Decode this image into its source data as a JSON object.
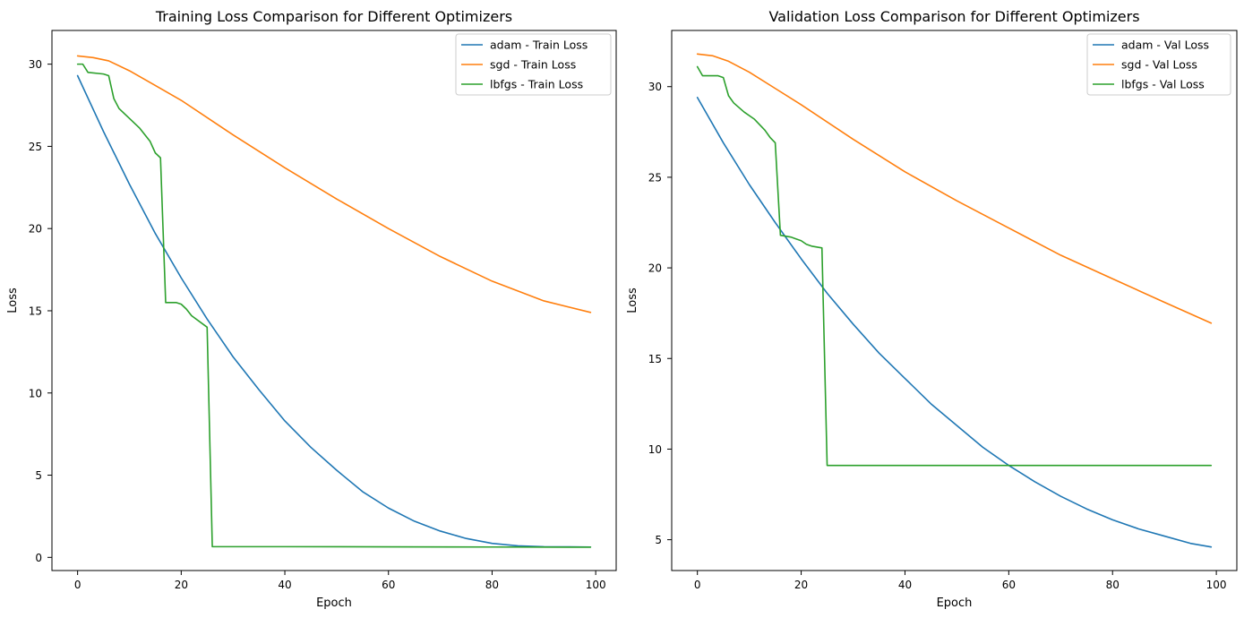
{
  "chart_data": [
    {
      "type": "line",
      "title": "Training Loss Comparison for Different Optimizers",
      "xlabel": "Epoch",
      "ylabel": "Loss",
      "xlim": [
        -4.95,
        103.95
      ],
      "ylim": [
        -0.8,
        32.05
      ],
      "xticks": [
        0,
        20,
        40,
        60,
        80,
        100
      ],
      "yticks": [
        0,
        5,
        10,
        15,
        20,
        25,
        30
      ],
      "grid": false,
      "legend": "top-right",
      "series": [
        {
          "name": "adam - Train Loss",
          "color": "#1f77b4",
          "points": [
            [
              0,
              29.3
            ],
            [
              5,
              25.9
            ],
            [
              10,
              22.7
            ],
            [
              15,
              19.7
            ],
            [
              20,
              17.0
            ],
            [
              25,
              14.5
            ],
            [
              30,
              12.2
            ],
            [
              35,
              10.2
            ],
            [
              40,
              8.3
            ],
            [
              45,
              6.7
            ],
            [
              50,
              5.3
            ],
            [
              55,
              4.0
            ],
            [
              60,
              3.0
            ],
            [
              65,
              2.2
            ],
            [
              70,
              1.6
            ],
            [
              75,
              1.15
            ],
            [
              80,
              0.85
            ],
            [
              85,
              0.7
            ],
            [
              90,
              0.65
            ],
            [
              95,
              0.64
            ],
            [
              99,
              0.63
            ]
          ]
        },
        {
          "name": "sgd - Train Loss",
          "color": "#ff7f0e",
          "points": [
            [
              0,
              30.5
            ],
            [
              3,
              30.4
            ],
            [
              6,
              30.2
            ],
            [
              10,
              29.6
            ],
            [
              15,
              28.7
            ],
            [
              20,
              27.8
            ],
            [
              30,
              25.7
            ],
            [
              40,
              23.7
            ],
            [
              50,
              21.8
            ],
            [
              60,
              20.0
            ],
            [
              70,
              18.3
            ],
            [
              80,
              16.8
            ],
            [
              90,
              15.6
            ],
            [
              99,
              14.9
            ]
          ]
        },
        {
          "name": "lbfgs - Train Loss",
          "color": "#2ca02c",
          "points": [
            [
              0,
              30.0
            ],
            [
              1,
              30.0
            ],
            [
              2,
              29.5
            ],
            [
              5,
              29.4
            ],
            [
              6,
              29.3
            ],
            [
              7,
              27.9
            ],
            [
              8,
              27.3
            ],
            [
              10,
              26.7
            ],
            [
              12,
              26.1
            ],
            [
              14,
              25.3
            ],
            [
              15,
              24.6
            ],
            [
              16,
              24.3
            ],
            [
              17,
              15.5
            ],
            [
              19,
              15.5
            ],
            [
              20,
              15.4
            ],
            [
              21,
              15.1
            ],
            [
              22,
              14.7
            ],
            [
              25,
              14.0
            ],
            [
              26,
              0.65
            ],
            [
              40,
              0.65
            ],
            [
              60,
              0.64
            ],
            [
              80,
              0.63
            ],
            [
              99,
              0.62
            ]
          ]
        }
      ]
    },
    {
      "type": "line",
      "title": "Validation Loss Comparison for Different Optimizers",
      "xlabel": "Epoch",
      "ylabel": "Loss",
      "xlim": [
        -4.95,
        103.95
      ],
      "ylim": [
        3.3,
        33.1
      ],
      "xticks": [
        0,
        20,
        40,
        60,
        80,
        100
      ],
      "yticks": [
        5,
        10,
        15,
        20,
        25,
        30
      ],
      "grid": false,
      "legend": "top-right",
      "series": [
        {
          "name": "adam - Val Loss",
          "color": "#1f77b4",
          "points": [
            [
              0,
              29.4
            ],
            [
              5,
              26.9
            ],
            [
              10,
              24.6
            ],
            [
              15,
              22.5
            ],
            [
              20,
              20.5
            ],
            [
              25,
              18.6
            ],
            [
              30,
              16.9
            ],
            [
              35,
              15.3
            ],
            [
              40,
              13.9
            ],
            [
              45,
              12.5
            ],
            [
              50,
              11.3
            ],
            [
              55,
              10.1
            ],
            [
              60,
              9.1
            ],
            [
              65,
              8.2
            ],
            [
              70,
              7.4
            ],
            [
              75,
              6.7
            ],
            [
              80,
              6.1
            ],
            [
              85,
              5.6
            ],
            [
              90,
              5.2
            ],
            [
              95,
              4.8
            ],
            [
              99,
              4.6
            ]
          ]
        },
        {
          "name": "sgd - Val Loss",
          "color": "#ff7f0e",
          "points": [
            [
              0,
              31.8
            ],
            [
              3,
              31.7
            ],
            [
              6,
              31.4
            ],
            [
              10,
              30.8
            ],
            [
              15,
              29.9
            ],
            [
              20,
              29.0
            ],
            [
              30,
              27.1
            ],
            [
              40,
              25.3
            ],
            [
              50,
              23.7
            ],
            [
              60,
              22.2
            ],
            [
              70,
              20.7
            ],
            [
              80,
              19.4
            ],
            [
              90,
              18.1
            ],
            [
              99,
              16.95
            ]
          ]
        },
        {
          "name": "lbfgs - Val Loss",
          "color": "#2ca02c",
          "points": [
            [
              0,
              31.1
            ],
            [
              1,
              30.6
            ],
            [
              4,
              30.6
            ],
            [
              5,
              30.5
            ],
            [
              6,
              29.5
            ],
            [
              7,
              29.1
            ],
            [
              9,
              28.6
            ],
            [
              11,
              28.2
            ],
            [
              13,
              27.6
            ],
            [
              14,
              27.2
            ],
            [
              15,
              26.9
            ],
            [
              16,
              21.8
            ],
            [
              18,
              21.7
            ],
            [
              19,
              21.6
            ],
            [
              20,
              21.5
            ],
            [
              21,
              21.3
            ],
            [
              22,
              21.2
            ],
            [
              24,
              21.1
            ],
            [
              25,
              9.1
            ],
            [
              40,
              9.1
            ],
            [
              60,
              9.1
            ],
            [
              80,
              9.1
            ],
            [
              99,
              9.1
            ]
          ]
        }
      ]
    }
  ]
}
